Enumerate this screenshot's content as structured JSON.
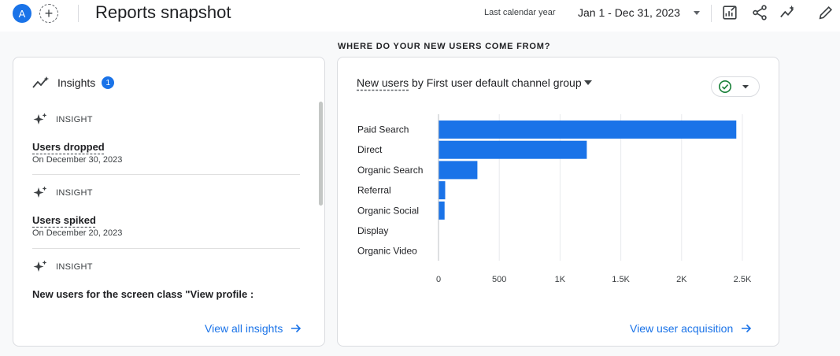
{
  "header": {
    "avatar_letter": "A",
    "add_comparison_symbol": "+",
    "title": "Reports snapshot",
    "date_range_label": "Last calendar year",
    "date_range_value": "Jan 1 - Dec 31, 2023",
    "icons": [
      "customize-report-icon",
      "share-icon",
      "insights-icon",
      "edit-icon"
    ]
  },
  "section_heading": "WHERE DO YOUR NEW USERS COME FROM?",
  "insights": {
    "title": "Insights",
    "count": "1",
    "items": [
      {
        "tag": "INSIGHT",
        "title": "Users dropped",
        "date": "On December 30, 2023"
      },
      {
        "tag": "INSIGHT",
        "title": "Users spiked",
        "date": "On December 20, 2023"
      },
      {
        "tag": "INSIGHT",
        "title": "New users for the screen class \"View profile :"
      }
    ],
    "link": "View all insights"
  },
  "acquisition": {
    "title_metric": "New users",
    "title_connector": " by ",
    "title_dimension": "First user default channel group",
    "link": "View user acquisition"
  },
  "chart_data": {
    "type": "bar",
    "orientation": "horizontal",
    "categories": [
      "Paid Search",
      "Direct",
      "Organic Search",
      "Referral",
      "Organic Social",
      "Display",
      "Organic Video"
    ],
    "values": [
      2450,
      1220,
      320,
      55,
      50,
      0,
      0
    ],
    "xlim": [
      0,
      2500
    ],
    "ticks": [
      0,
      500,
      1000,
      1500,
      2000,
      2500
    ],
    "tick_labels": [
      "0",
      "500",
      "1K",
      "1.5K",
      "2K",
      "2.5K"
    ],
    "grid": true,
    "bar_color": "#1a73e8"
  }
}
